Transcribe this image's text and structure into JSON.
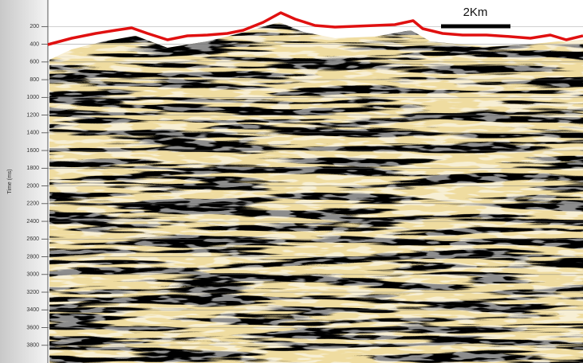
{
  "axis": {
    "label": "Time (ms)",
    "ylim": [
      -100,
      4000
    ],
    "yticks": [
      200,
      400,
      600,
      800,
      1000,
      1200,
      1400,
      1600,
      1800,
      2000,
      2200,
      2400,
      2600,
      2800,
      3000,
      3200,
      3400,
      3600,
      3800
    ]
  },
  "scale_bar": {
    "label": "2Km"
  }
}
